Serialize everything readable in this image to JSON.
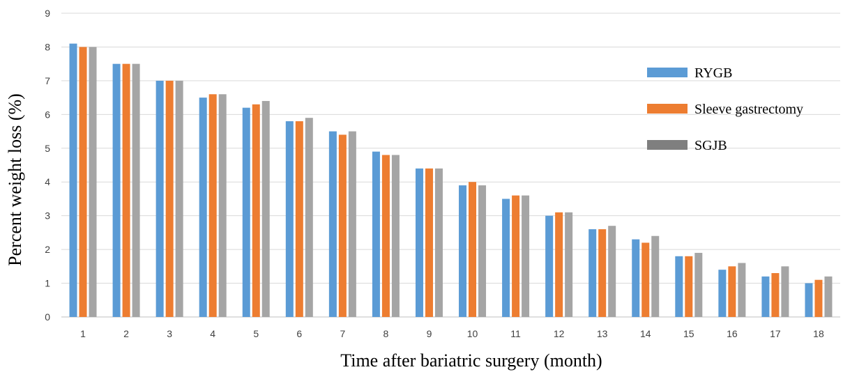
{
  "chart_data": {
    "type": "bar",
    "title": "",
    "xlabel": "Time after bariatric surgery (month)",
    "ylabel": "Percent weight loss (%)",
    "ylim": [
      0,
      9
    ],
    "yticks": [
      0,
      1,
      2,
      3,
      4,
      5,
      6,
      7,
      8,
      9
    ],
    "grid": true,
    "legend_position": "right",
    "categories": [
      "1",
      "2",
      "3",
      "4",
      "5",
      "6",
      "7",
      "8",
      "9",
      "10",
      "11",
      "12",
      "13",
      "14",
      "15",
      "16",
      "17",
      "18"
    ],
    "series": [
      {
        "name": "RYGB",
        "color": "#5b9bd5",
        "values": [
          8.1,
          7.5,
          7.0,
          6.5,
          6.2,
          5.8,
          5.5,
          4.9,
          4.4,
          3.9,
          3.5,
          3.0,
          2.6,
          2.3,
          1.8,
          1.4,
          1.2,
          1.0
        ]
      },
      {
        "name": "Sleeve gastrectomy",
        "color": "#ed7d31",
        "values": [
          8.0,
          7.5,
          7.0,
          6.6,
          6.3,
          5.8,
          5.4,
          4.8,
          4.4,
          4.0,
          3.6,
          3.1,
          2.6,
          2.2,
          1.8,
          1.5,
          1.3,
          1.1
        ]
      },
      {
        "name": "SGJB",
        "color": "#a5a5a5",
        "legend_color": "#7f7f7f",
        "values": [
          8.0,
          7.5,
          7.0,
          6.6,
          6.4,
          5.9,
          5.5,
          4.8,
          4.4,
          3.9,
          3.6,
          3.1,
          2.7,
          2.4,
          1.9,
          1.6,
          1.5,
          1.2
        ]
      }
    ]
  }
}
